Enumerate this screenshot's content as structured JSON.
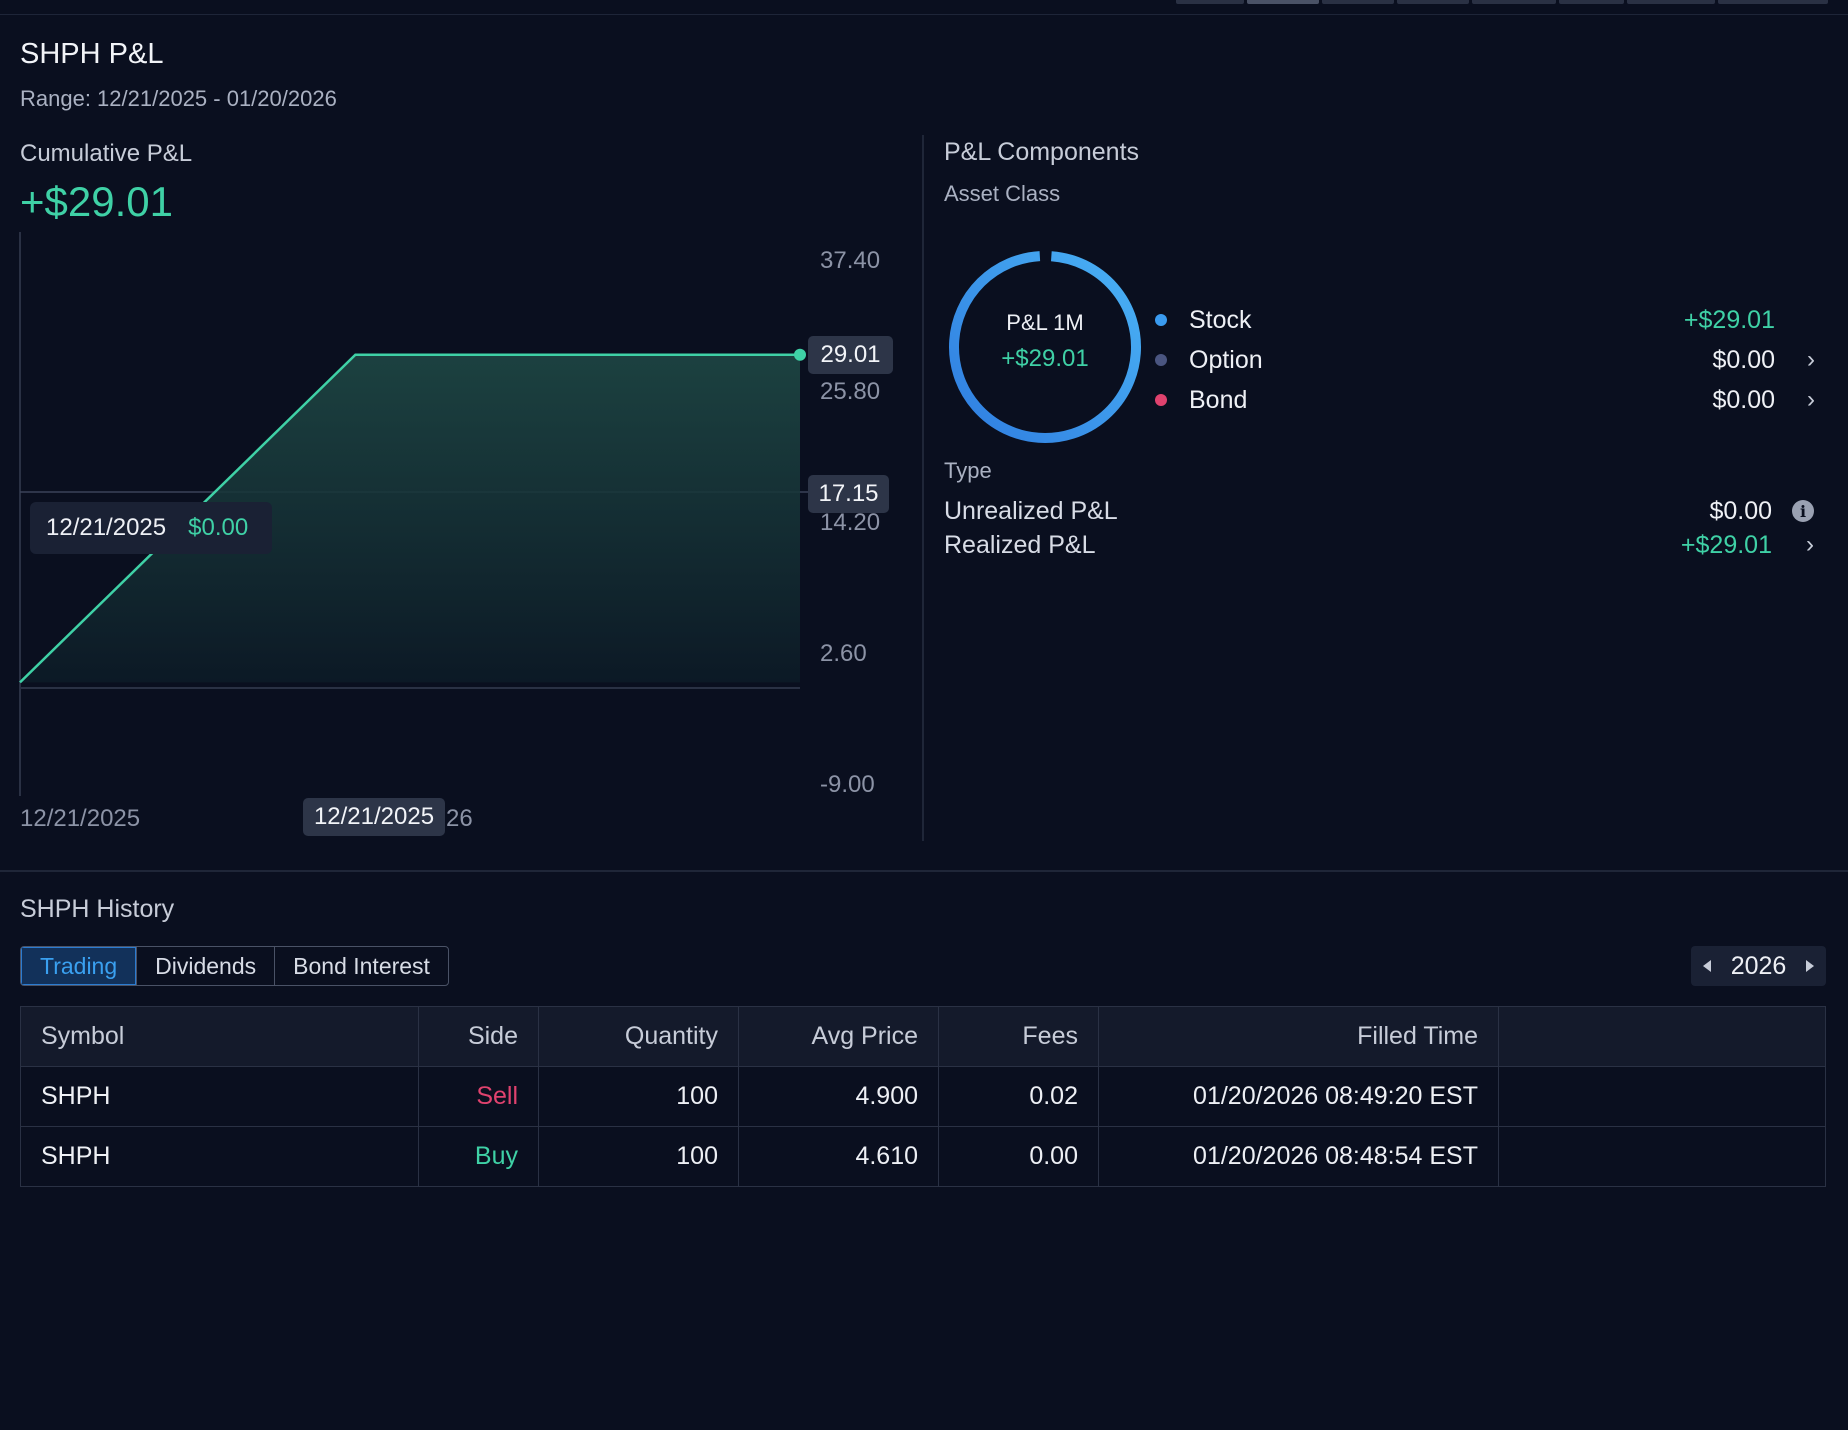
{
  "header": {
    "title": "SHPH P&L",
    "range": "Range: 12/21/2025 - 01/20/2026"
  },
  "cumulative": {
    "label": "Cumulative P&L",
    "value": "+$29.01"
  },
  "chart_data": {
    "type": "area",
    "x": [
      "12/21/2025",
      "01/05/2026",
      "01/20/2026"
    ],
    "values": [
      0.0,
      29.01,
      29.01
    ],
    "yticks": [
      "37.40",
      "25.80",
      "14.20",
      "2.60",
      "-9.00"
    ],
    "ylim": [
      -9.0,
      37.4
    ],
    "xtick_labels": [
      "12/21/2025",
      "26"
    ],
    "last_value_label": "29.01",
    "crosshair_value_label": "17.15",
    "crosshair_date_label": "12/21/2025",
    "tooltip": {
      "date": "12/21/2025",
      "value": "$0.00"
    },
    "line_color": "#3fd1a6",
    "grid": false
  },
  "components": {
    "title": "P&L Components",
    "asset_class_label": "Asset Class",
    "donut": {
      "label": "P&L 1M",
      "value": "+$29.01",
      "color": "#3a9bf0"
    },
    "items": [
      {
        "name": "Stock",
        "value": "+$29.01",
        "color": "#3a9bf0",
        "value_color": "#3fd1a6",
        "chevron": ""
      },
      {
        "name": "Option",
        "value": "$0.00",
        "color": "#4a5580",
        "value_color": "#eef0f5",
        "chevron": "›"
      },
      {
        "name": "Bond",
        "value": "$0.00",
        "color": "#e0426e",
        "value_color": "#eef0f5",
        "chevron": "›"
      }
    ],
    "type_label": "Type",
    "unrealized": {
      "label": "Unrealized P&L",
      "value": "$0.00",
      "icon": "info-icon"
    },
    "realized": {
      "label": "Realized P&L",
      "value": "+$29.01",
      "chevron": "›"
    }
  },
  "history": {
    "title": "SHPH History",
    "tabs": [
      "Trading",
      "Dividends",
      "Bond Interest"
    ],
    "active_tab": "Trading",
    "year": "2026",
    "columns": [
      "Symbol",
      "Side",
      "Quantity",
      "Avg Price",
      "Fees",
      "Filled Time",
      ""
    ],
    "rows": [
      {
        "symbol": "SHPH",
        "side": "Sell",
        "quantity": "100",
        "avg_price": "4.900",
        "fees": "0.02",
        "filled_time": "01/20/2026 08:49:20 EST"
      },
      {
        "symbol": "SHPH",
        "side": "Buy",
        "quantity": "100",
        "avg_price": "4.610",
        "fees": "0.00",
        "filled_time": "01/20/2026 08:48:54 EST"
      }
    ]
  }
}
